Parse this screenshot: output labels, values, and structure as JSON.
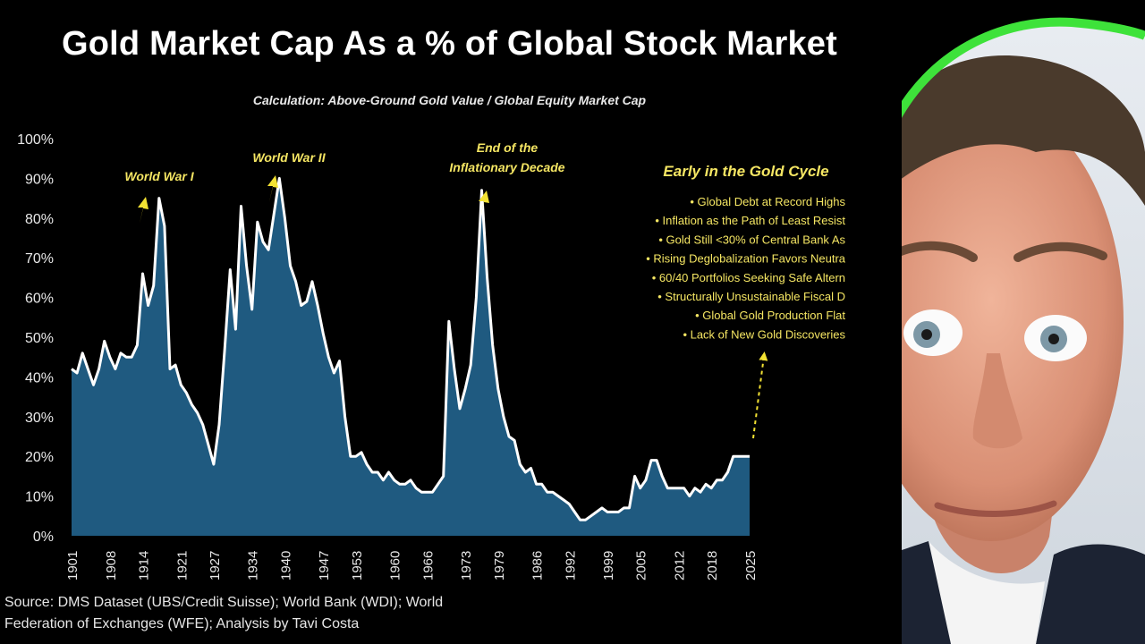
{
  "title": "Gold Market Cap As a % of Global Stock Market",
  "subtitle": "Calculation: Above-Ground Gold Value / Global Equity Market Cap",
  "source": {
    "line1": "Source: DMS Dataset (UBS/Credit Suisse); World Bank (WDI); World",
    "line2": "Federation of Exchanges (WFE); Analysis by Tavi Costa"
  },
  "annotations": {
    "ww1": "World War I",
    "ww2": "World War II",
    "inflation_line1": "End of the",
    "inflation_line2": "Inflationary Decade",
    "cycle_title": "Early in the Gold Cycle",
    "bullets": [
      "Global Debt at Record Highs",
      "Inflation as the Path of Least Resist",
      "Gold Still <30% of Central Bank As",
      "Rising Deglobalization Favors Neutra",
      "60/40 Portfolios Seeking Safe Altern",
      "Structurally Unsustainable Fiscal D",
      "Global Gold Production Flat",
      "Lack of New Gold Discoveries"
    ]
  },
  "colors": {
    "background": "#000000",
    "area_fill": "#1f5a80",
    "line": "#ffffff",
    "annotation": "#f5e663",
    "arrow": "#f3e233",
    "border_green": "#3ee23a"
  },
  "presenter_icon": "presenter-photo",
  "chart_data": {
    "type": "area",
    "title": "Gold Market Cap As a % of Global Stock Market",
    "subtitle": "Calculation: Above-Ground Gold Value / Global Equity Market Cap",
    "xlabel": "",
    "ylabel": "",
    "xlim": [
      1901,
      2025
    ],
    "ylim": [
      0,
      100
    ],
    "y_ticks": [
      "0%",
      "10%",
      "20%",
      "30%",
      "40%",
      "50%",
      "60%",
      "70%",
      "80%",
      "90%",
      "100%"
    ],
    "x_ticks": [
      "1901",
      "1908",
      "1914",
      "1921",
      "1927",
      "1934",
      "1940",
      "1947",
      "1953",
      "1960",
      "1966",
      "1973",
      "1979",
      "1986",
      "1992",
      "1999",
      "2005",
      "2012",
      "2018",
      "2025"
    ],
    "grid": false,
    "legend": "none",
    "x": [
      1901,
      1902,
      1903,
      1904,
      1905,
      1906,
      1907,
      1908,
      1909,
      1910,
      1911,
      1912,
      1913,
      1914,
      1915,
      1916,
      1917,
      1918,
      1919,
      1920,
      1921,
      1922,
      1923,
      1924,
      1925,
      1926,
      1927,
      1928,
      1929,
      1930,
      1931,
      1932,
      1933,
      1934,
      1935,
      1936,
      1937,
      1938,
      1939,
      1940,
      1941,
      1942,
      1943,
      1944,
      1945,
      1946,
      1947,
      1948,
      1949,
      1950,
      1951,
      1952,
      1953,
      1954,
      1955,
      1956,
      1957,
      1958,
      1959,
      1960,
      1961,
      1962,
      1963,
      1964,
      1965,
      1966,
      1967,
      1968,
      1969,
      1970,
      1971,
      1972,
      1973,
      1974,
      1975,
      1976,
      1977,
      1978,
      1979,
      1980,
      1981,
      1982,
      1983,
      1984,
      1985,
      1986,
      1987,
      1988,
      1989,
      1990,
      1991,
      1992,
      1993,
      1994,
      1995,
      1996,
      1997,
      1998,
      1999,
      2000,
      2001,
      2002,
      2003,
      2004,
      2005,
      2006,
      2007,
      2008,
      2009,
      2010,
      2011,
      2012,
      2013,
      2014,
      2015,
      2016,
      2017,
      2018,
      2019,
      2020,
      2021,
      2022,
      2023,
      2024,
      2025
    ],
    "values": [
      42,
      41,
      46,
      42,
      38,
      42,
      49,
      45,
      42,
      46,
      45,
      45,
      48,
      66,
      58,
      63,
      85,
      78,
      42,
      43,
      38,
      36,
      33,
      31,
      28,
      23,
      18,
      28,
      47,
      67,
      52,
      83,
      68,
      57,
      79,
      74,
      72,
      81,
      90,
      80,
      68,
      64,
      58,
      59,
      64,
      58,
      51,
      45,
      41,
      44,
      30,
      20,
      20,
      21,
      18,
      16,
      16,
      14,
      16,
      14,
      13,
      13,
      14,
      12,
      11,
      11,
      11,
      13,
      15,
      54,
      42,
      32,
      37,
      43,
      60,
      87,
      65,
      48,
      37,
      30,
      25,
      24,
      18,
      16,
      17,
      13,
      13,
      11,
      11,
      10,
      9,
      8,
      6,
      4,
      4,
      5,
      6,
      7,
      6,
      6,
      6,
      7,
      7,
      15,
      12,
      14,
      19,
      19,
      15,
      12,
      12,
      12,
      12,
      10,
      12,
      11,
      13,
      12,
      14,
      14,
      16,
      20,
      20,
      20,
      20
    ]
  }
}
